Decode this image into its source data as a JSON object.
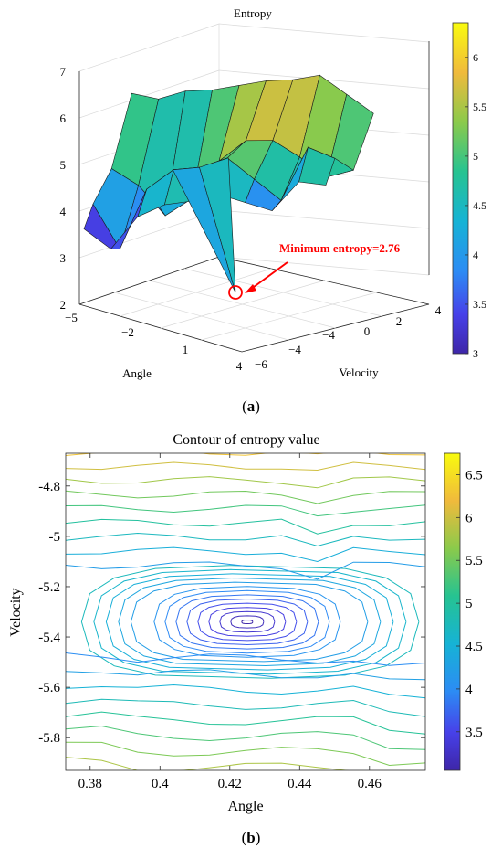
{
  "chart_data": [
    {
      "type": "surface3d",
      "title": "Entropy",
      "xlabel": "Angle",
      "ylabel": "Velocity",
      "x_ticks": [
        "−5",
        "−2",
        "1",
        "4"
      ],
      "y_ticks": [
        "−6",
        "−4",
        "−4",
        "0",
        "2",
        "4"
      ],
      "z_ticks": [
        "2",
        "3",
        "4",
        "5",
        "6",
        "7"
      ],
      "zlim": [
        2,
        7
      ],
      "rear_ridge_heights": [
        5.8,
        5.7,
        6.0,
        6.1,
        6.3,
        6.5,
        6.6,
        6.8,
        6.3,
        5.8
      ],
      "mid_valley_heights": [
        4.6,
        4.1,
        3.2,
        3.7,
        4.8,
        5.4,
        5.4,
        4.9,
        4.3,
        4.5
      ],
      "front_ridge_heights": [
        4.5,
        3.1,
        4.8,
        5.3,
        5.3,
        5.5,
        4.8,
        4.1,
        5.6,
        5.2
      ],
      "minimum_value": 2.76,
      "annotation": "Minimum entropy=2.76",
      "colorbar": {
        "ticks": [
          "3",
          "3.5",
          "4",
          "4.5",
          "5",
          "5.5",
          "6"
        ],
        "range": [
          3,
          6.35
        ]
      },
      "panel_label": "a"
    },
    {
      "type": "contour",
      "title": "Contour of entropy value",
      "xlabel": "Angle",
      "ylabel": "Velocity",
      "xlim": [
        0.373,
        0.476
      ],
      "ylim": [
        -5.93,
        -4.67
      ],
      "x_ticks": [
        "0.38",
        "0.4",
        "0.42",
        "0.44",
        "0.46"
      ],
      "y_ticks": [
        "-4.8",
        "-5",
        "-5.2",
        "-5.4",
        "-5.6",
        "-5.8"
      ],
      "minimum_location": [
        0.425,
        -5.34
      ],
      "minimum_value": 3.05,
      "colorbar": {
        "ticks": [
          "3.5",
          "4",
          "4.5",
          "5",
          "5.5",
          "6",
          "6.5"
        ],
        "range": [
          3.05,
          6.75
        ]
      },
      "panel_label": "b"
    }
  ],
  "colors": {
    "low": "#3e26a8",
    "mid": "#1fc9c1",
    "high": "#f9fb0e",
    "annotation": "#ff0000"
  }
}
